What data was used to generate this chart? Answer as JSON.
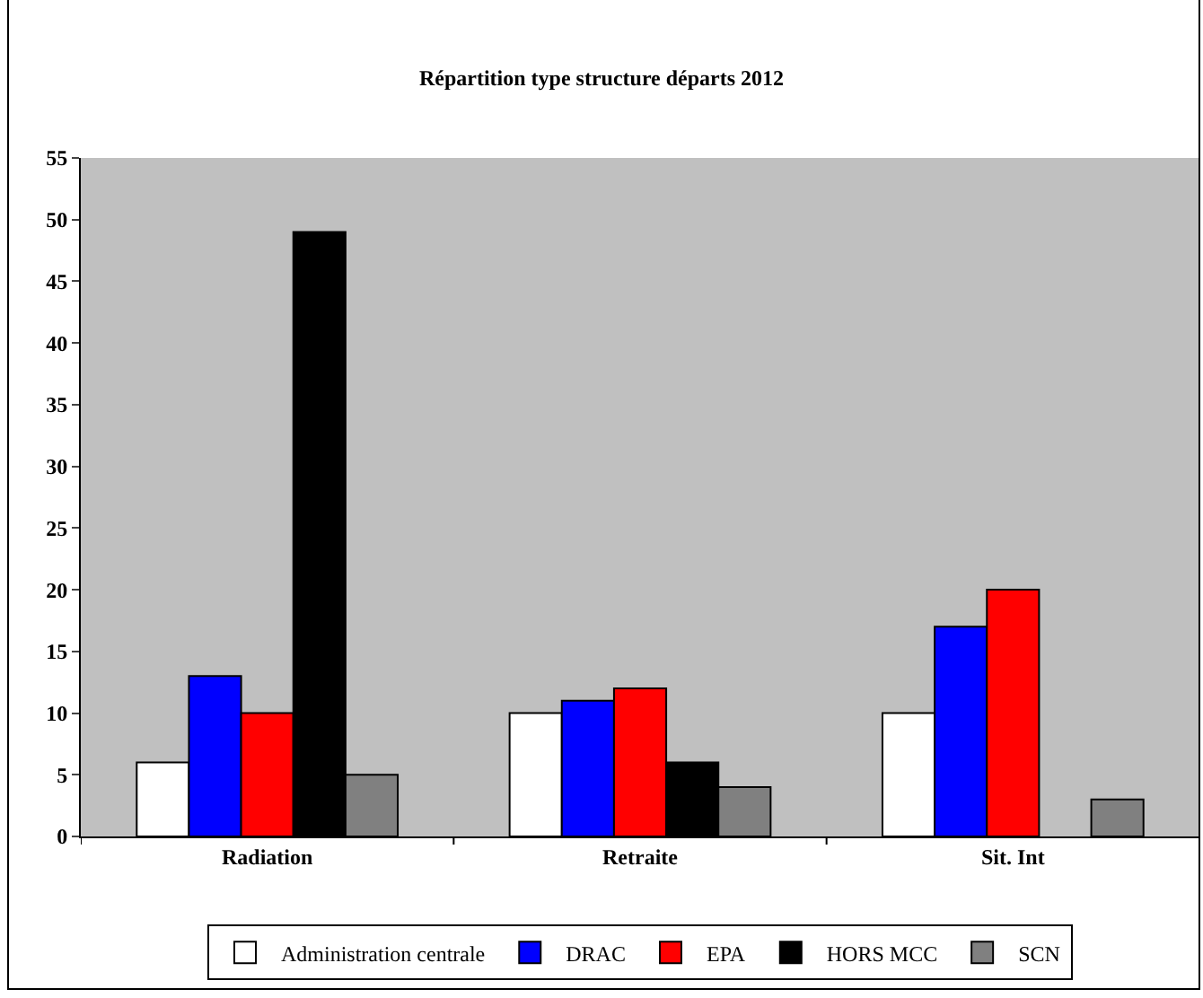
{
  "chart_data": {
    "type": "bar",
    "title": "Répartition type structure départs 2012",
    "categories": [
      "Radiation",
      "Retraite",
      "Sit. Int"
    ],
    "series": [
      {
        "name": "Administration centrale",
        "color": "#ffffff",
        "values": [
          6,
          10,
          10
        ]
      },
      {
        "name": "DRAC",
        "color": "#0000ff",
        "values": [
          13,
          11,
          17
        ]
      },
      {
        "name": "EPA",
        "color": "#ff0000",
        "values": [
          10,
          12,
          20
        ]
      },
      {
        "name": "HORS MCC",
        "color": "#000000",
        "values": [
          49,
          6,
          null
        ]
      },
      {
        "name": "SCN",
        "color": "#808080",
        "values": [
          5,
          4,
          3
        ]
      }
    ],
    "ylim": [
      0,
      55
    ],
    "yticks": [
      0,
      5,
      10,
      15,
      20,
      25,
      30,
      35,
      40,
      45,
      50,
      55
    ],
    "grid": false,
    "legend": "bottom"
  }
}
